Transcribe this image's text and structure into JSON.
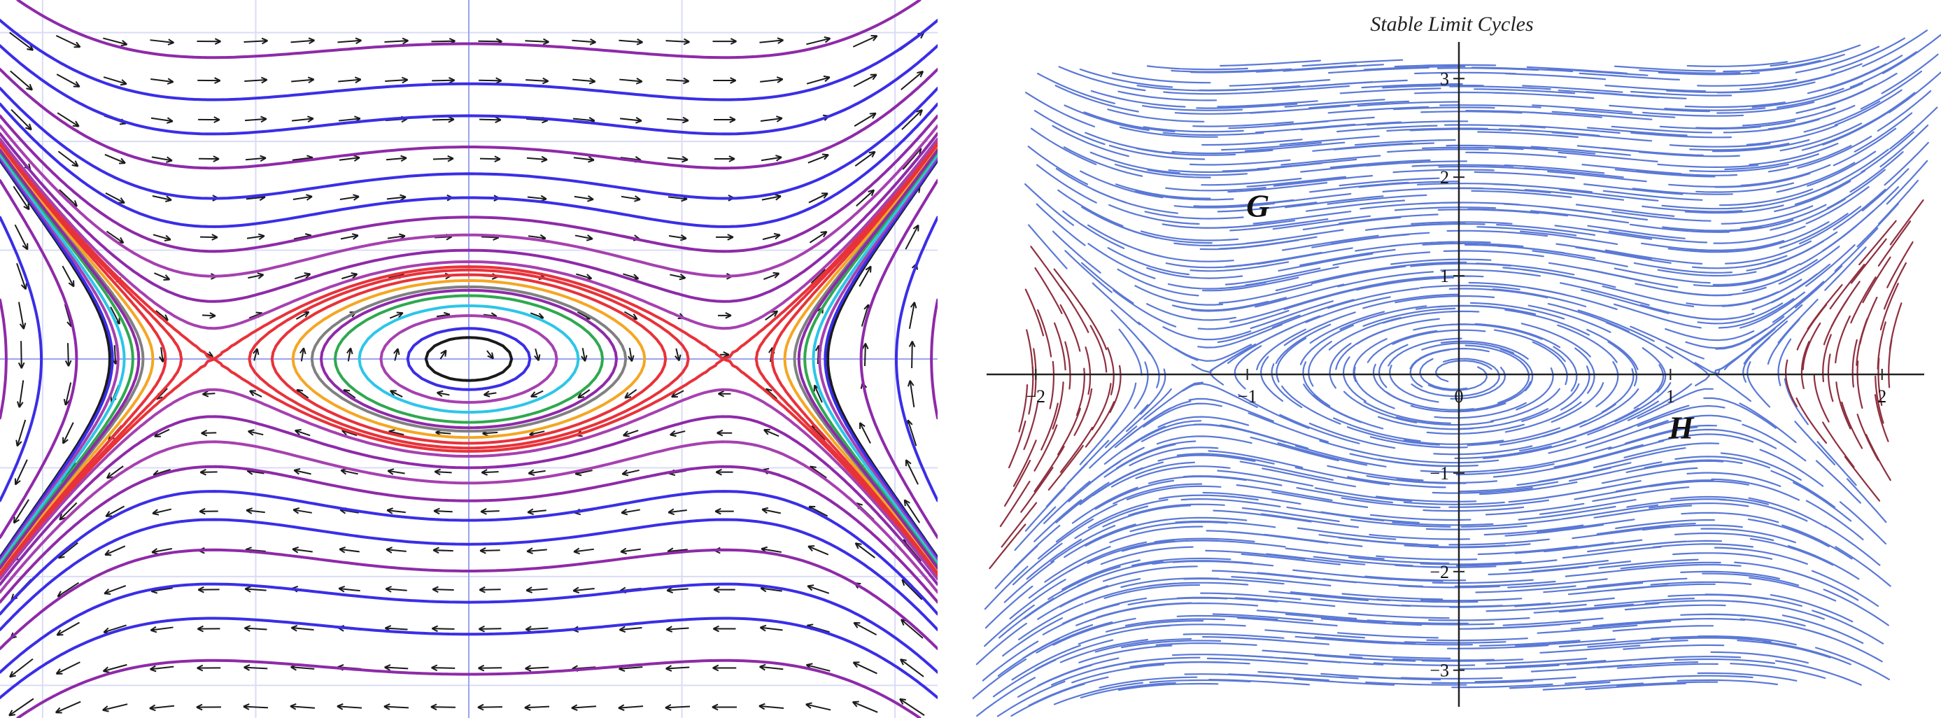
{
  "chart_data": [
    {
      "type": "phase-portrait",
      "title": "",
      "xlabel": "",
      "ylabel": "",
      "xlim": [
        -2.2,
        2.2
      ],
      "ylim": [
        -3.3,
        3.3
      ],
      "grid": true,
      "equilibria": [
        {
          "kind": "center",
          "x": 0,
          "y": 0
        },
        {
          "kind": "saddle",
          "x": -1.2,
          "y": 0
        },
        {
          "kind": "saddle",
          "x": 1.2,
          "y": 0
        }
      ],
      "orbit_colors": [
        "#3a2ee6",
        "#8e2aa8",
        "#a640b0",
        "#e8323a",
        "#f5a623",
        "#808080",
        "#2fa84f",
        "#2cc6e8",
        "#1a1a1a"
      ],
      "vector_field_color": "#1a1a1a"
    },
    {
      "type": "streamline",
      "title": "Stable Limit Cycles",
      "xlabel": "",
      "ylabel": "",
      "xlim": [
        -2.1,
        2.1
      ],
      "ylim": [
        -3.3,
        3.3
      ],
      "x_ticks": [
        {
          "value": -2,
          "label": "−2"
        },
        {
          "value": -1,
          "label": "−1"
        },
        {
          "value": 0,
          "label": "0"
        },
        {
          "value": 1,
          "label": "1"
        },
        {
          "value": 2,
          "label": "2"
        }
      ],
      "y_ticks": [
        {
          "value": 3,
          "label": "3"
        },
        {
          "value": 2,
          "label": "2"
        },
        {
          "value": 1,
          "label": "1"
        },
        {
          "value": -1,
          "label": "−1"
        },
        {
          "value": -2,
          "label": "−2"
        },
        {
          "value": -3,
          "label": "−3"
        }
      ],
      "annotations": [
        {
          "text": "G",
          "x": -0.95,
          "y": 1.6
        },
        {
          "text": "H",
          "x": 1.05,
          "y": -0.65
        }
      ],
      "stream_colors": [
        "#5a78d6",
        "#8e2f3f"
      ],
      "grid": false
    }
  ]
}
